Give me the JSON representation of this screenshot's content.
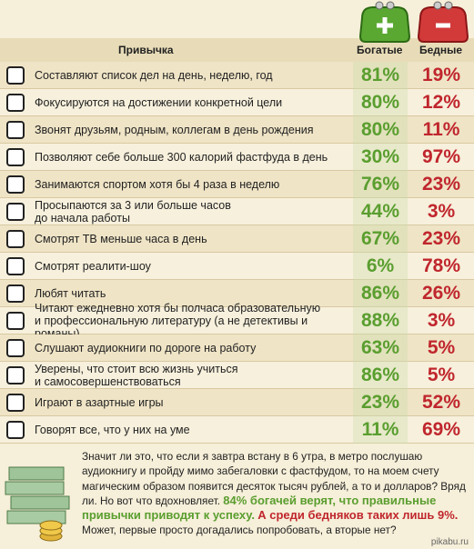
{
  "header": {
    "habit": "Привычка",
    "rich": "Богатые",
    "poor": "Бедные"
  },
  "rows": [
    {
      "habit": "Составляют список дел на день, неделю, год",
      "rich": "81%",
      "poor": "19%"
    },
    {
      "habit": "Фокусируются на достижении конкретной цели",
      "rich": "80%",
      "poor": "12%"
    },
    {
      "habit": "Звонят друзьям, родным, коллегам в день рождения",
      "rich": "80%",
      "poor": "11%"
    },
    {
      "habit": "Позволяют себе больше 300 калорий фастфуда в день",
      "rich": "30%",
      "poor": "97%"
    },
    {
      "habit": "Занимаются спортом хотя бы 4 раза в неделю",
      "rich": "76%",
      "poor": "23%"
    },
    {
      "habit": "Просыпаются за 3 или больше часов\nдо начала работы",
      "rich": "44%",
      "poor": "3%"
    },
    {
      "habit": "Смотрят ТВ меньше часа в день",
      "rich": "67%",
      "poor": "23%"
    },
    {
      "habit": "Смотрят реалити-шоу",
      "rich": "6%",
      "poor": "78%"
    },
    {
      "habit": "Любят читать",
      "rich": "86%",
      "poor": "26%"
    },
    {
      "habit": "Читают ежедневно хотя бы полчаса образовательную\nи профессиональную литературу (а не детективы и романы)",
      "rich": "88%",
      "poor": "3%"
    },
    {
      "habit": "Слушают аудиокниги по дороге на работу",
      "rich": "63%",
      "poor": "5%"
    },
    {
      "habit": "Уверены, что стоит всю жизнь учиться\nи самосовершенствоваться",
      "rich": "86%",
      "poor": "5%"
    },
    {
      "habit": "Играют в азартные игры",
      "rich": "23%",
      "poor": "52%"
    },
    {
      "habit": "Говорят все, что у них на уме",
      "rich": "11%",
      "poor": "69%"
    }
  ],
  "footer": {
    "text": "Значит ли это, что если я завтра встану в 6 утра, в метро послушаю аудиокнигу и пройду мимо забегаловки с фастфудом, то на моем счету магическим образом появится десяток тысяч рублей, а то и долларов? Вряд ли. Но вот что вдохновляет.",
    "rich_note": "84% богачей верят, что правильные привычки приводят к успеху.",
    "poor_note": "А среди бедняков таких лишь 9%.",
    "closing": "Может, первые просто догадались попробовать, а вторые нет?"
  },
  "watermark": "pikabu.ru"
}
